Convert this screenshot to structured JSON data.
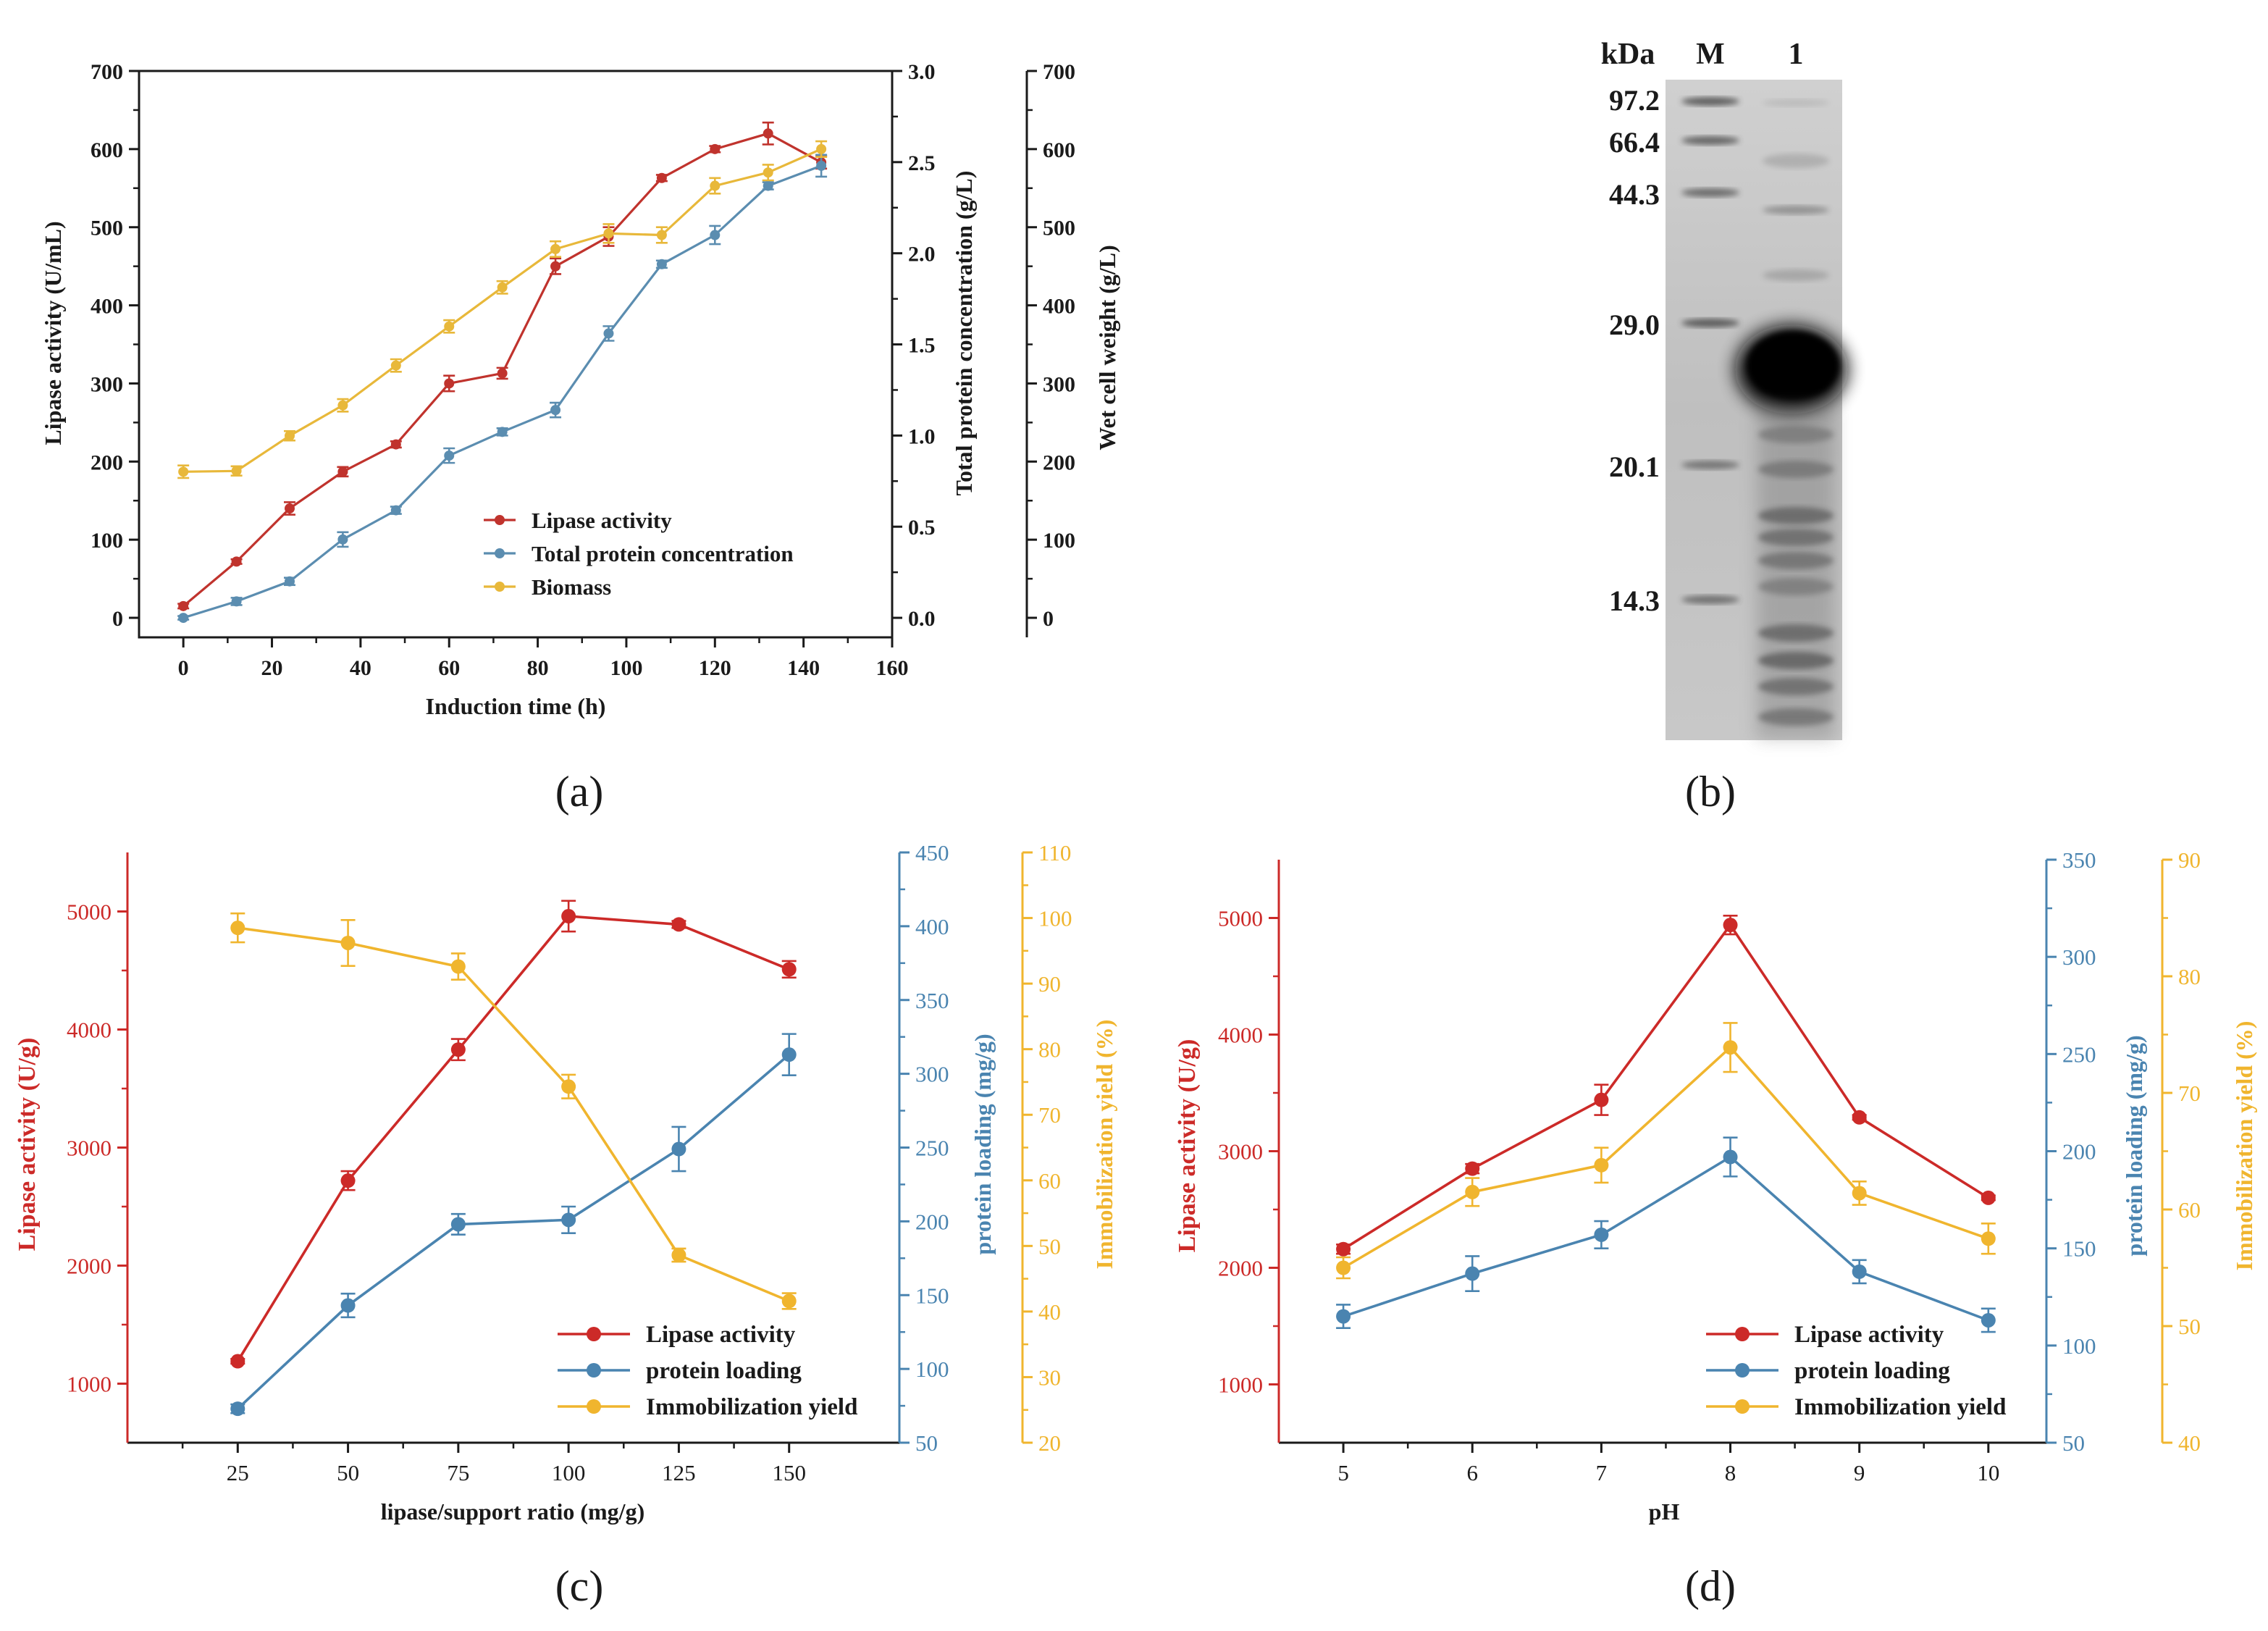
{
  "colors": {
    "axis": "#1a1a1a",
    "red": "#c0332d",
    "blue": "#5b8db0",
    "yellow": "#e8b83a",
    "c_red": "#cc2a28",
    "c_blue": "#4a84b0",
    "c_yellow": "#f0b52e"
  },
  "chart_data": [
    {
      "panel": "a",
      "type": "line",
      "caption": "(a)",
      "xlabel": "Induction time (h)",
      "xlim": [
        -10,
        160
      ],
      "xticks": [
        0,
        20,
        40,
        60,
        80,
        100,
        120,
        140,
        160
      ],
      "axes": [
        {
          "id": "left",
          "label": "Lipase activity (U/mL)",
          "lim": [
            -25,
            700
          ],
          "ticks": [
            0,
            100,
            200,
            300,
            400,
            500,
            600,
            700
          ]
        },
        {
          "id": "right1",
          "label": "Total protein concentration (g/L)",
          "lim": [
            -0.107,
            3.0
          ],
          "ticks": [
            0.0,
            0.5,
            1.0,
            1.5,
            2.0,
            2.5,
            3.0
          ],
          "tick_labels": [
            "0.0",
            "0.5",
            "1.0",
            "1.5",
            "2.0",
            "2.5",
            "3.0"
          ]
        },
        {
          "id": "right2",
          "label": "Wet cell weight (g/L)",
          "lim": [
            -25,
            700
          ],
          "ticks": [
            0,
            100,
            200,
            300,
            400,
            500,
            600,
            700
          ]
        }
      ],
      "x": [
        0,
        12,
        24,
        36,
        48,
        60,
        72,
        84,
        96,
        108,
        120,
        132,
        144
      ],
      "series": [
        {
          "name": "Lipase activity",
          "axis": "left",
          "color_key": "red",
          "values": [
            15,
            72,
            140,
            187,
            222,
            300,
            313,
            450,
            488,
            563,
            600,
            620,
            583
          ],
          "errors": [
            3,
            3,
            8,
            6,
            4,
            10,
            7,
            10,
            12,
            4,
            4,
            14,
            8
          ]
        },
        {
          "name": "Total protein concentration",
          "axis": "right1",
          "color_key": "blue",
          "values": [
            0.0,
            0.09,
            0.2,
            0.43,
            0.59,
            0.89,
            1.02,
            1.14,
            1.56,
            1.94,
            2.1,
            2.37,
            2.48
          ],
          "errors": [
            0.01,
            0.02,
            0.02,
            0.04,
            0.02,
            0.04,
            0.02,
            0.04,
            0.04,
            0.02,
            0.05,
            0.02,
            0.06
          ]
        },
        {
          "name": "Biomass",
          "axis": "right2",
          "color_key": "yellow",
          "values": [
            187,
            188,
            233,
            272,
            323,
            373,
            423,
            472,
            492,
            490,
            553,
            570,
            600
          ],
          "errors": [
            8,
            6,
            6,
            8,
            8,
            8,
            8,
            10,
            12,
            10,
            10,
            10,
            10
          ]
        }
      ],
      "legend": [
        "Lipase activity",
        "Total protein concentration",
        "Biomass"
      ]
    },
    {
      "panel": "b",
      "type": "gel",
      "caption": "(b)",
      "header": "kDa",
      "lanes": [
        "M",
        "1"
      ],
      "markers": [
        "97.2",
        "66.4",
        "44.3",
        "29.0",
        "20.1",
        "14.3"
      ]
    },
    {
      "panel": "c",
      "type": "line",
      "caption": "(c)",
      "xlabel": "lipase/support ratio (mg/g)",
      "xlim": [
        0,
        175
      ],
      "xticks": [
        25,
        50,
        75,
        100,
        125,
        150
      ],
      "axes": [
        {
          "id": "left",
          "label": "Lipase activity (U/g)",
          "lim": [
            500,
            5500
          ],
          "ticks": [
            1000,
            2000,
            3000,
            4000,
            5000
          ]
        },
        {
          "id": "right1",
          "label": "protein loading (mg/g)",
          "lim": [
            50,
            450
          ],
          "ticks": [
            50,
            100,
            150,
            200,
            250,
            300,
            350,
            400,
            450
          ]
        },
        {
          "id": "right2",
          "label": "Immobilization yield (%)",
          "lim": [
            20,
            110
          ],
          "ticks": [
            20,
            30,
            40,
            50,
            60,
            70,
            80,
            90,
            100,
            110
          ]
        }
      ],
      "x": [
        25,
        50,
        75,
        100,
        125,
        150
      ],
      "series": [
        {
          "name": "Lipase activity",
          "axis": "left",
          "color_key": "c_red",
          "values": [
            1190,
            2720,
            3830,
            4960,
            4890,
            4510
          ],
          "errors": [
            20,
            80,
            90,
            130,
            30,
            70
          ]
        },
        {
          "name": "protein loading",
          "axis": "right1",
          "color_key": "c_blue",
          "values": [
            73,
            143,
            198,
            201,
            249,
            313
          ],
          "errors": [
            3,
            8,
            7,
            9,
            15,
            14
          ]
        },
        {
          "name": "Immobilization yield",
          "axis": "right2",
          "color_key": "c_yellow",
          "values": [
            98.5,
            96.2,
            92.6,
            74.3,
            48.6,
            41.6
          ],
          "errors": [
            2.2,
            3.5,
            2.0,
            1.8,
            1.0,
            1.2
          ]
        }
      ],
      "legend": [
        "Lipase activity",
        "protein loading",
        "Immobilization yield"
      ]
    },
    {
      "panel": "d",
      "type": "line",
      "caption": "(d)",
      "xlabel": "pH",
      "xlim": [
        4.5,
        10.45
      ],
      "xticks": [
        5,
        6,
        7,
        8,
        9,
        10
      ],
      "axes": [
        {
          "id": "left",
          "label": "Lipase activity (U/g)",
          "lim": [
            500,
            5500
          ],
          "ticks": [
            1000,
            2000,
            3000,
            4000,
            5000
          ]
        },
        {
          "id": "right1",
          "label": "protein loading (mg/g)",
          "lim": [
            50,
            350
          ],
          "ticks": [
            50,
            100,
            150,
            200,
            250,
            300,
            350
          ]
        },
        {
          "id": "right2",
          "label": "Immobilization yield (%)",
          "lim": [
            40,
            90
          ],
          "ticks": [
            40,
            50,
            60,
            70,
            80,
            90
          ]
        }
      ],
      "x": [
        5,
        6,
        7,
        8,
        9,
        10
      ],
      "series": [
        {
          "name": "Lipase activity",
          "axis": "left",
          "color_key": "c_red",
          "values": [
            2160,
            2850,
            3440,
            4940,
            3290,
            2600
          ],
          "errors": [
            40,
            40,
            130,
            80,
            20,
            20
          ]
        },
        {
          "name": "protein loading",
          "axis": "right1",
          "color_key": "c_blue",
          "values": [
            115,
            137,
            157,
            197,
            138,
            113
          ],
          "errors": [
            6,
            9,
            7,
            10,
            6,
            6
          ]
        },
        {
          "name": "Immobilization yield",
          "axis": "right2",
          "color_key": "c_yellow",
          "values": [
            55,
            61.5,
            63.8,
            73.9,
            61.4,
            57.5
          ],
          "errors": [
            0.9,
            1.2,
            1.5,
            2.1,
            1.0,
            1.3
          ]
        }
      ],
      "legend": [
        "Lipase activity",
        "protein loading",
        "Immobilization yield"
      ]
    }
  ]
}
